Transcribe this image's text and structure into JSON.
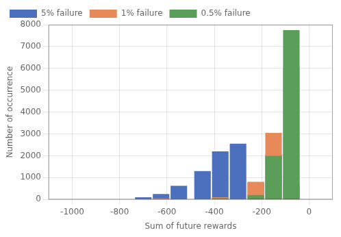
{
  "chart_data": {
    "type": "bar",
    "xlabel": "Sum of future rewards",
    "ylabel": "Number of occurrence",
    "xlim": [
      -1100,
      100
    ],
    "ylim": [
      0,
      8000
    ],
    "xticks": [
      -1000,
      -800,
      -600,
      -400,
      -200,
      0
    ],
    "yticks": [
      0,
      1000,
      2000,
      3000,
      4000,
      5000,
      6000,
      7000,
      8000
    ],
    "grid": true,
    "legend": "upper left",
    "series": [
      {
        "name": "5% failure",
        "color": "#4c6fbe",
        "x": [
          -700,
          -625,
          -550,
          -450,
          -375,
          -300,
          -225,
          -150,
          -75
        ],
        "values": [
          100,
          250,
          625,
          1300,
          2200,
          2550,
          800,
          2050,
          725
        ]
      },
      {
        "name": "1% failure",
        "color": "#e8895a",
        "x": [
          -625,
          -375,
          -225,
          -150,
          -75
        ],
        "values": [
          50,
          100,
          800,
          3050,
          6050
        ]
      },
      {
        "name": "0.5% failure",
        "color": "#5a9e5a",
        "x": [
          -375,
          -225,
          -150,
          -75
        ],
        "values": [
          50,
          200,
          2000,
          7750
        ]
      }
    ]
  }
}
